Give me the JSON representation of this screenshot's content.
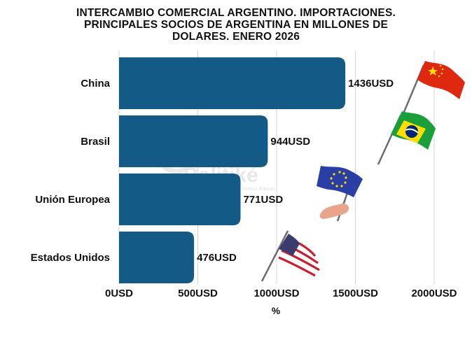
{
  "chart_data": {
    "type": "bar",
    "orientation": "horizontal",
    "title_lines": [
      "INTERCAMBIO COMERCIAL ARGENTINO. IMPORTACIONES.",
      "PRINCIPALES SOCIOS DE ARGENTINA EN MILLONES DE",
      "DOLARES. ENERO 2026"
    ],
    "categories": [
      "China",
      "Brasil",
      "Unión Europea",
      "Estados Unidos"
    ],
    "values": [
      1436,
      944,
      771,
      476
    ],
    "value_labels": [
      "1436USD",
      "944USD",
      "771USD",
      "476USD"
    ],
    "xlim": [
      0,
      2000
    ],
    "x_ticks": [
      0,
      500,
      1000,
      1500,
      2000
    ],
    "x_tick_labels": [
      "0USD",
      "500USD",
      "1000USD",
      "1500USD",
      "2000USD"
    ],
    "xlabel": "%",
    "ylabel": "",
    "grid": "vertical",
    "bar_color": "#135a87",
    "flags": [
      "china-flag",
      "brazil-flag",
      "eu-flag",
      "usa-flag"
    ]
  },
  "watermark": {
    "brand": "Politiké",
    "tagline": "Políticas Públicas"
  },
  "colors": {
    "bar": "#135a87",
    "grid": "#d5d5d5",
    "text": "#111111"
  }
}
